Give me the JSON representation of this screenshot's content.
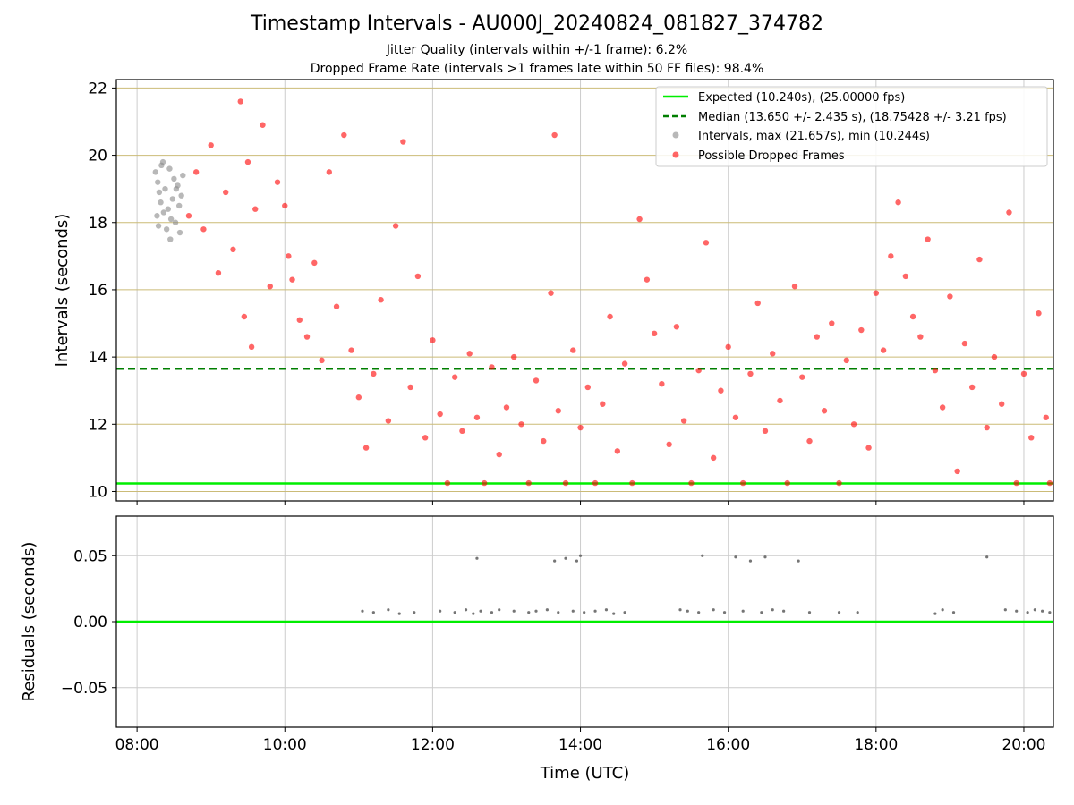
{
  "title": "Timestamp Intervals - AU000J_20240824_081827_374782",
  "subtitle1": "Jitter Quality (intervals within +/-1 frame): 6.2%",
  "subtitle2": "Dropped Frame Rate (intervals >1 frames late within 50 FF files): 98.4%",
  "colors": {
    "expected": "#00ee00",
    "median": "#007f00",
    "intervals": "#888888",
    "dropped": "#ff0000",
    "hgrid": "#cbbb77",
    "vgrid": "#cccccc",
    "residuals": "#666666"
  },
  "chart_data": [
    {
      "type": "scatter",
      "xlabel": "",
      "ylabel": "Intervals (seconds)",
      "xlim": [
        7.72,
        20.4
      ],
      "ylim": [
        9.72,
        22.25
      ],
      "xticks": [
        8,
        10,
        12,
        14,
        16,
        18,
        20
      ],
      "yticks": [
        10,
        12,
        14,
        16,
        18,
        20,
        22
      ],
      "ytick_labels": [
        "10",
        "12",
        "14",
        "16",
        "18",
        "20",
        "22"
      ],
      "grid": "both",
      "legend_position": "top-right",
      "lines": [
        {
          "name": "Expected (10.240s), (25.00000 fps)",
          "y": 10.24,
          "style": "solid",
          "color_key": "expected"
        },
        {
          "name": "Median (13.650 +/- 2.435 s), (18.75428 +/- 3.21 fps)",
          "y": 13.65,
          "style": "dashed",
          "color_key": "median"
        }
      ],
      "series": [
        {
          "name": "Intervals, max (21.657s), min (10.244s)",
          "color_key": "intervals",
          "points": [
            [
              8.25,
              19.5
            ],
            [
              8.28,
              19.2
            ],
            [
              8.3,
              18.9
            ],
            [
              8.32,
              18.6
            ],
            [
              8.35,
              19.8
            ],
            [
              8.36,
              18.3
            ],
            [
              8.38,
              19.0
            ],
            [
              8.4,
              17.8
            ],
            [
              8.42,
              18.4
            ],
            [
              8.44,
              19.6
            ],
            [
              8.45,
              17.5
            ],
            [
              8.48,
              18.7
            ],
            [
              8.5,
              19.3
            ],
            [
              8.52,
              18.0
            ],
            [
              8.55,
              19.1
            ],
            [
              8.58,
              17.7
            ],
            [
              8.6,
              18.8
            ],
            [
              8.62,
              19.4
            ],
            [
              8.27,
              18.2
            ],
            [
              8.33,
              19.7
            ],
            [
              8.46,
              18.1
            ],
            [
              8.53,
              19.0
            ],
            [
              8.57,
              18.5
            ],
            [
              8.29,
              17.9
            ]
          ]
        },
        {
          "name": "Possible Dropped Frames",
          "color_key": "dropped",
          "points": [
            [
              8.7,
              18.2
            ],
            [
              8.8,
              19.5
            ],
            [
              8.9,
              17.8
            ],
            [
              9.0,
              20.3
            ],
            [
              9.1,
              16.5
            ],
            [
              9.2,
              18.9
            ],
            [
              9.3,
              17.2
            ],
            [
              9.4,
              21.6
            ],
            [
              9.45,
              15.2
            ],
            [
              9.5,
              19.8
            ],
            [
              9.55,
              14.3
            ],
            [
              9.6,
              18.4
            ],
            [
              9.7,
              20.9
            ],
            [
              9.8,
              16.1
            ],
            [
              9.9,
              19.2
            ],
            [
              10.0,
              18.5
            ],
            [
              10.05,
              17.0
            ],
            [
              10.1,
              16.3
            ],
            [
              10.2,
              15.1
            ],
            [
              10.3,
              14.6
            ],
            [
              10.4,
              16.8
            ],
            [
              10.5,
              13.9
            ],
            [
              10.6,
              19.5
            ],
            [
              10.7,
              15.5
            ],
            [
              10.8,
              20.6
            ],
            [
              10.9,
              14.2
            ],
            [
              11.0,
              12.8
            ],
            [
              11.1,
              11.3
            ],
            [
              11.2,
              13.5
            ],
            [
              11.3,
              15.7
            ],
            [
              11.4,
              12.1
            ],
            [
              11.5,
              17.9
            ],
            [
              11.6,
              20.4
            ],
            [
              11.7,
              13.1
            ],
            [
              11.8,
              16.4
            ],
            [
              11.9,
              11.6
            ],
            [
              12.0,
              14.5
            ],
            [
              12.1,
              12.3
            ],
            [
              12.2,
              10.25
            ],
            [
              12.3,
              13.4
            ],
            [
              12.4,
              11.8
            ],
            [
              12.5,
              14.1
            ],
            [
              12.6,
              12.2
            ],
            [
              12.7,
              10.25
            ],
            [
              12.8,
              13.7
            ],
            [
              12.9,
              11.1
            ],
            [
              13.0,
              12.5
            ],
            [
              13.1,
              14.0
            ],
            [
              13.2,
              12.0
            ],
            [
              13.3,
              10.25
            ],
            [
              13.4,
              13.3
            ],
            [
              13.5,
              11.5
            ],
            [
              13.6,
              15.9
            ],
            [
              13.65,
              20.6
            ],
            [
              13.7,
              12.4
            ],
            [
              13.8,
              10.25
            ],
            [
              13.9,
              14.2
            ],
            [
              14.0,
              11.9
            ],
            [
              14.1,
              13.1
            ],
            [
              14.2,
              10.25
            ],
            [
              14.3,
              12.6
            ],
            [
              14.4,
              15.2
            ],
            [
              14.5,
              11.2
            ],
            [
              14.6,
              13.8
            ],
            [
              14.7,
              10.25
            ],
            [
              14.8,
              18.1
            ],
            [
              14.9,
              16.3
            ],
            [
              15.0,
              14.7
            ],
            [
              15.1,
              13.2
            ],
            [
              15.2,
              11.4
            ],
            [
              15.3,
              14.9
            ],
            [
              15.4,
              12.1
            ],
            [
              15.5,
              10.25
            ],
            [
              15.6,
              13.6
            ],
            [
              15.7,
              17.4
            ],
            [
              15.8,
              11.0
            ],
            [
              15.9,
              13.0
            ],
            [
              16.0,
              14.3
            ],
            [
              16.1,
              12.2
            ],
            [
              16.2,
              10.25
            ],
            [
              16.3,
              13.5
            ],
            [
              16.4,
              15.6
            ],
            [
              16.5,
              11.8
            ],
            [
              16.6,
              14.1
            ],
            [
              16.7,
              12.7
            ],
            [
              16.8,
              10.25
            ],
            [
              16.9,
              16.1
            ],
            [
              17.0,
              13.4
            ],
            [
              17.1,
              11.5
            ],
            [
              17.2,
              14.6
            ],
            [
              17.3,
              12.4
            ],
            [
              17.4,
              15.0
            ],
            [
              17.5,
              10.25
            ],
            [
              17.6,
              13.9
            ],
            [
              17.7,
              12.0
            ],
            [
              17.8,
              14.8
            ],
            [
              17.9,
              11.3
            ],
            [
              18.0,
              15.9
            ],
            [
              18.1,
              14.2
            ],
            [
              18.2,
              17.0
            ],
            [
              18.3,
              18.6
            ],
            [
              18.4,
              16.4
            ],
            [
              18.5,
              15.2
            ],
            [
              18.6,
              14.6
            ],
            [
              18.7,
              17.5
            ],
            [
              18.8,
              13.6
            ],
            [
              18.9,
              12.5
            ],
            [
              19.0,
              15.8
            ],
            [
              19.1,
              10.6
            ],
            [
              19.2,
              14.4
            ],
            [
              19.3,
              13.1
            ],
            [
              19.4,
              16.9
            ],
            [
              19.5,
              11.9
            ],
            [
              19.6,
              14.0
            ],
            [
              19.7,
              12.6
            ],
            [
              19.8,
              18.3
            ],
            [
              19.9,
              10.25
            ],
            [
              20.0,
              13.5
            ],
            [
              20.1,
              11.6
            ],
            [
              20.2,
              15.3
            ],
            [
              20.3,
              12.2
            ],
            [
              20.35,
              10.25
            ]
          ]
        }
      ]
    },
    {
      "type": "scatter",
      "xlabel": "Time (UTC)",
      "ylabel": "Residuals (seconds)",
      "xlim": [
        7.72,
        20.4
      ],
      "ylim": [
        -0.08,
        0.08
      ],
      "xticks": [
        8,
        10,
        12,
        14,
        16,
        18,
        20
      ],
      "xtick_labels": [
        "08:00",
        "10:00",
        "12:00",
        "14:00",
        "16:00",
        "18:00",
        "20:00"
      ],
      "yticks": [
        0.05,
        0.0,
        -0.05
      ],
      "ytick_labels": [
        "0.05",
        "0.00",
        "−0.05"
      ],
      "grid": "both",
      "lines": [
        {
          "y": 0.0,
          "style": "solid",
          "color_key": "expected"
        }
      ],
      "series": [
        {
          "color_key": "residuals",
          "points": [
            [
              11.05,
              0.008
            ],
            [
              11.2,
              0.007
            ],
            [
              11.4,
              0.009
            ],
            [
              11.55,
              0.006
            ],
            [
              11.75,
              0.007
            ],
            [
              12.1,
              0.008
            ],
            [
              12.3,
              0.007
            ],
            [
              12.45,
              0.009
            ],
            [
              12.55,
              0.006
            ],
            [
              12.6,
              0.048
            ],
            [
              12.65,
              0.008
            ],
            [
              12.8,
              0.007
            ],
            [
              12.9,
              0.009
            ],
            [
              13.1,
              0.008
            ],
            [
              13.3,
              0.007
            ],
            [
              13.4,
              0.008
            ],
            [
              13.55,
              0.009
            ],
            [
              13.65,
              0.046
            ],
            [
              13.7,
              0.007
            ],
            [
              13.8,
              0.048
            ],
            [
              13.9,
              0.008
            ],
            [
              13.95,
              0.046
            ],
            [
              14.0,
              0.05
            ],
            [
              14.05,
              0.007
            ],
            [
              14.2,
              0.008
            ],
            [
              14.35,
              0.009
            ],
            [
              14.45,
              0.006
            ],
            [
              14.6,
              0.007
            ],
            [
              15.35,
              0.009
            ],
            [
              15.45,
              0.008
            ],
            [
              15.6,
              0.007
            ],
            [
              15.65,
              0.05
            ],
            [
              15.8,
              0.009
            ],
            [
              15.95,
              0.007
            ],
            [
              16.1,
              0.049
            ],
            [
              16.2,
              0.008
            ],
            [
              16.3,
              0.046
            ],
            [
              16.45,
              0.007
            ],
            [
              16.5,
              0.049
            ],
            [
              16.6,
              0.009
            ],
            [
              16.75,
              0.008
            ],
            [
              16.95,
              0.046
            ],
            [
              17.1,
              0.007
            ],
            [
              17.5,
              0.007
            ],
            [
              17.75,
              0.007
            ],
            [
              18.8,
              0.006
            ],
            [
              18.9,
              0.009
            ],
            [
              19.05,
              0.007
            ],
            [
              19.5,
              0.049
            ],
            [
              19.75,
              0.009
            ],
            [
              19.9,
              0.008
            ],
            [
              20.05,
              0.007
            ],
            [
              20.15,
              0.009
            ],
            [
              20.25,
              0.008
            ],
            [
              20.35,
              0.007
            ]
          ]
        }
      ]
    }
  ]
}
